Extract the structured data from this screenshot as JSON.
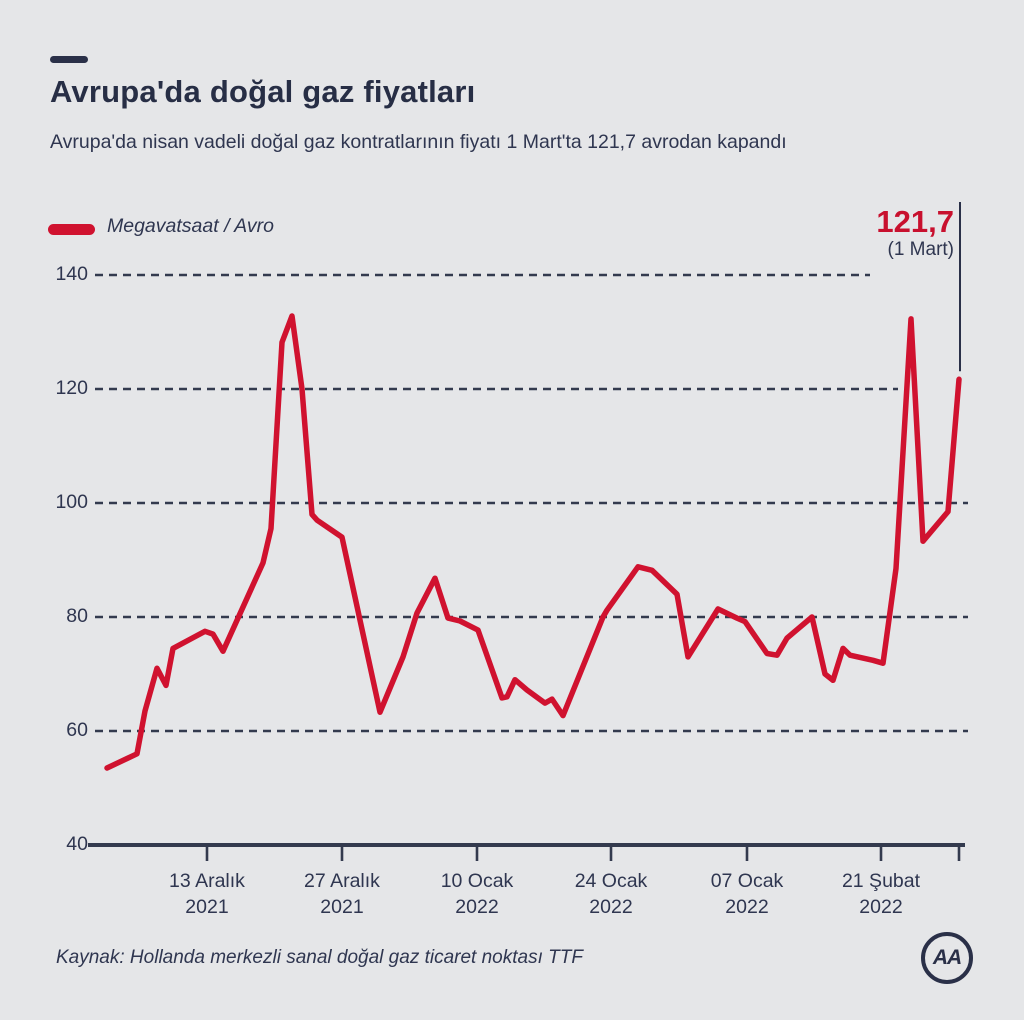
{
  "page": {
    "background": "#e5e6e8",
    "navy": "#2e3550",
    "red": "#d0122f"
  },
  "header": {
    "title": "Avrupa'da doğal gaz fiyatları",
    "subtitle": "Avrupa'da nisan vadeli doğal gaz kontratlarının fiyatı 1 Mart'ta 121,7 avrodan kapandı"
  },
  "legend": {
    "label": "Megavatsaat / Avro"
  },
  "annotation": {
    "value": "121,7",
    "date": "(1 Mart)"
  },
  "source": {
    "text": "Kaynak: Hollanda merkezli sanal doğal gaz ticaret noktası TTF"
  },
  "logo": {
    "text": "AA"
  },
  "chart_data": {
    "type": "line",
    "title": "Avrupa'da doğal gaz fiyatları",
    "ylabel": "Megavatsaat / Avro",
    "xlabel": "",
    "ylim": [
      40,
      140
    ],
    "yticks": [
      140,
      120,
      100,
      80,
      60,
      40
    ],
    "grid": "dashed-horizontal",
    "legend_position": "top-left",
    "xticks": [
      {
        "line1": "13 Aralık",
        "line2": "2021",
        "x": 207
      },
      {
        "line1": "27 Aralık",
        "line2": "2021",
        "x": 342
      },
      {
        "line1": "10 Ocak",
        "line2": "2022",
        "x": 477
      },
      {
        "line1": "24 Ocak",
        "line2": "2022",
        "x": 611
      },
      {
        "line1": "07 Ocak",
        "line2": "2022",
        "x": 747
      },
      {
        "line1": "21 Şubat",
        "line2": "2022",
        "x": 881
      },
      {
        "line1": "",
        "line2": "",
        "x": 959
      }
    ],
    "series": [
      {
        "name": "Megavatsaat / Avro",
        "color": "#d0122f",
        "points": [
          [
            107,
            53.5
          ],
          [
            137,
            56.0
          ],
          [
            145,
            63.5
          ],
          [
            157,
            71.0
          ],
          [
            166,
            68.0
          ],
          [
            173,
            74.5
          ],
          [
            205,
            77.5
          ],
          [
            213,
            77.0
          ],
          [
            223,
            74.0
          ],
          [
            263,
            89.5
          ],
          [
            271,
            95.5
          ],
          [
            282,
            128.2
          ],
          [
            292,
            132.8
          ],
          [
            302,
            120.0
          ],
          [
            312,
            98.0
          ],
          [
            317,
            97.0
          ],
          [
            342,
            94.0
          ],
          [
            380,
            63.3
          ],
          [
            403,
            73.0
          ],
          [
            417,
            80.7
          ],
          [
            435,
            86.8
          ],
          [
            448,
            79.8
          ],
          [
            460,
            79.3
          ],
          [
            478,
            77.7
          ],
          [
            502,
            65.8
          ],
          [
            507,
            66.0
          ],
          [
            515,
            69.0
          ],
          [
            527,
            67.2
          ],
          [
            545,
            64.9
          ],
          [
            552,
            65.6
          ],
          [
            563,
            62.7
          ],
          [
            603,
            80.0
          ],
          [
            607,
            81.2
          ],
          [
            638,
            88.8
          ],
          [
            652,
            88.2
          ],
          [
            677,
            84.0
          ],
          [
            688,
            73.0
          ],
          [
            718,
            81.4
          ],
          [
            737,
            79.8
          ],
          [
            745,
            79.2
          ],
          [
            767,
            73.6
          ],
          [
            777,
            73.3
          ],
          [
            787,
            76.3
          ],
          [
            812,
            80.0
          ],
          [
            825,
            70.0
          ],
          [
            833,
            68.9
          ],
          [
            843,
            74.5
          ],
          [
            850,
            73.3
          ],
          [
            873,
            72.4
          ],
          [
            883,
            71.9
          ],
          [
            896,
            88.5
          ],
          [
            911,
            132.3
          ],
          [
            923,
            93.3
          ],
          [
            948,
            98.5
          ],
          [
            959,
            121.7
          ]
        ]
      }
    ],
    "last_point": {
      "x": 959,
      "value": 121.7,
      "label": "121,7",
      "sublabel": "(1 Mart)"
    }
  }
}
